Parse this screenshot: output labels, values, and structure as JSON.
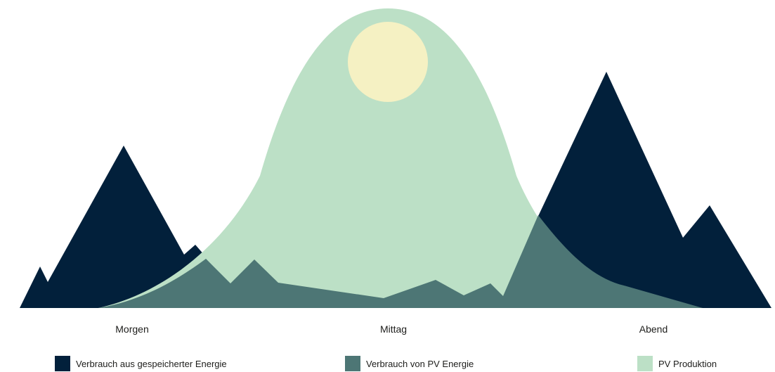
{
  "colors": {
    "stored_energy": "#02203b",
    "pv_consumption": "#4d7675",
    "pv_production": "#bce0c6",
    "sun": "#f5f1c3"
  },
  "time_labels": {
    "morning": "Morgen",
    "noon": "Mittag",
    "evening": "Abend"
  },
  "legend": [
    {
      "label": "Verbrauch aus gespeicherter Energie",
      "color": "#02203b"
    },
    {
      "label": "Verbrauch von PV Energie",
      "color": "#4d7675"
    },
    {
      "label": "PV Produktion",
      "color": "#bce0c6"
    }
  ]
}
